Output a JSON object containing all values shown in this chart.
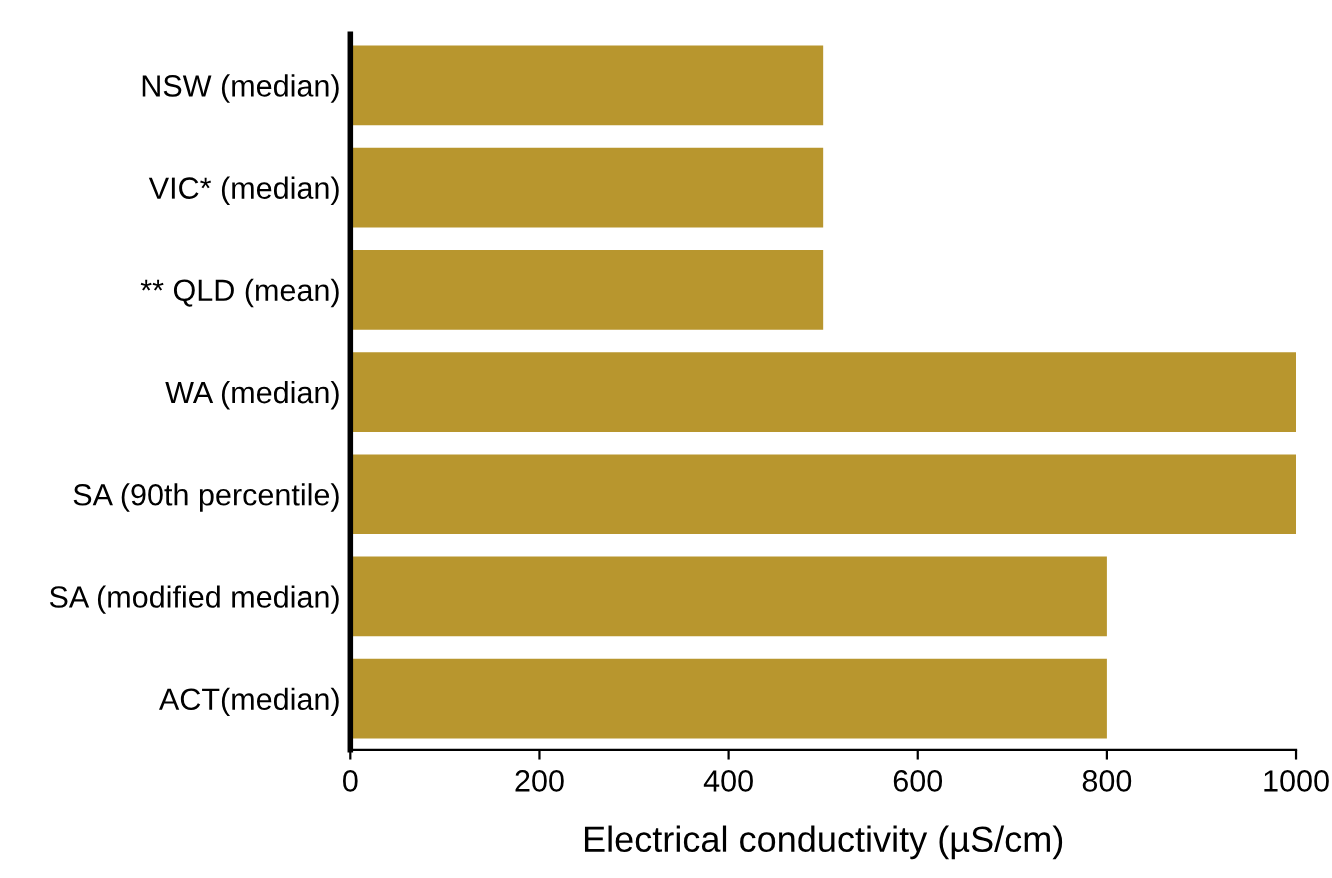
{
  "chart_data": {
    "type": "bar",
    "orientation": "horizontal",
    "xlabel": "Electrical conductivity (µS/cm)",
    "categories": [
      "NSW (median)",
      "VIC* (median)",
      "** QLD (mean)",
      "WA (median)",
      "SA (90th percentile)",
      "SA (modified median)",
      "ACT(median)"
    ],
    "values": [
      500,
      500,
      500,
      1000,
      1000,
      800,
      800
    ],
    "color": "#b8962e",
    "xlim": [
      0,
      1000
    ],
    "xticks": [
      0,
      200,
      400,
      600,
      800,
      1000
    ],
    "grid": false,
    "legend": false
  }
}
